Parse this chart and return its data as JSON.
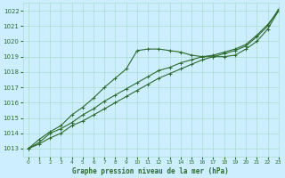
{
  "title": "Graphe pression niveau de la mer (hPa)",
  "bg_color": "#cceeff",
  "line_color": "#2d6a2d",
  "grid_color": "#aaddcc",
  "xlim": [
    -0.5,
    23
  ],
  "ylim": [
    1012.5,
    1022.5
  ],
  "xticks": [
    0,
    1,
    2,
    3,
    4,
    5,
    6,
    7,
    8,
    9,
    10,
    11,
    12,
    13,
    14,
    15,
    16,
    17,
    18,
    19,
    20,
    21,
    22,
    23
  ],
  "yticks": [
    1013,
    1014,
    1015,
    1016,
    1017,
    1018,
    1019,
    1020,
    1021,
    1022
  ],
  "series1": {
    "x": [
      0,
      1,
      2,
      3,
      4,
      5,
      6,
      7,
      8,
      9,
      10,
      11,
      12,
      13,
      14,
      15,
      16,
      17,
      18,
      19,
      20,
      21,
      22,
      23
    ],
    "y": [
      1013.0,
      1013.3,
      1013.7,
      1014.0,
      1014.5,
      1014.8,
      1015.2,
      1015.6,
      1016.0,
      1016.4,
      1016.8,
      1017.2,
      1017.6,
      1017.9,
      1018.2,
      1018.5,
      1018.8,
      1019.0,
      1019.2,
      1019.4,
      1019.7,
      1020.3,
      1021.0,
      1022.1
    ]
  },
  "series2": {
    "x": [
      0,
      1,
      2,
      3,
      4,
      5,
      6,
      7,
      8,
      9,
      10,
      11,
      12,
      13,
      14,
      15,
      16,
      17,
      18,
      19,
      20,
      21,
      22,
      23
    ],
    "y": [
      1013.0,
      1013.4,
      1014.0,
      1014.3,
      1014.7,
      1015.2,
      1015.6,
      1016.1,
      1016.5,
      1016.9,
      1017.3,
      1017.7,
      1018.1,
      1018.3,
      1018.6,
      1018.8,
      1019.0,
      1019.1,
      1019.3,
      1019.5,
      1019.8,
      1020.4,
      1021.1,
      1022.0
    ]
  },
  "series3": {
    "x": [
      0,
      1,
      2,
      3,
      4,
      5,
      6,
      7,
      8,
      9,
      10,
      11,
      12,
      13,
      14,
      15,
      16,
      17,
      18,
      19,
      20,
      21,
      22,
      23
    ],
    "y": [
      1013.0,
      1013.6,
      1014.1,
      1014.5,
      1015.2,
      1015.7,
      1016.3,
      1017.0,
      1017.6,
      1018.2,
      1019.4,
      1019.5,
      1019.5,
      1019.4,
      1019.3,
      1019.1,
      1019.0,
      1019.0,
      1019.0,
      1019.1,
      1019.5,
      1020.0,
      1020.8,
      1022.0
    ]
  }
}
